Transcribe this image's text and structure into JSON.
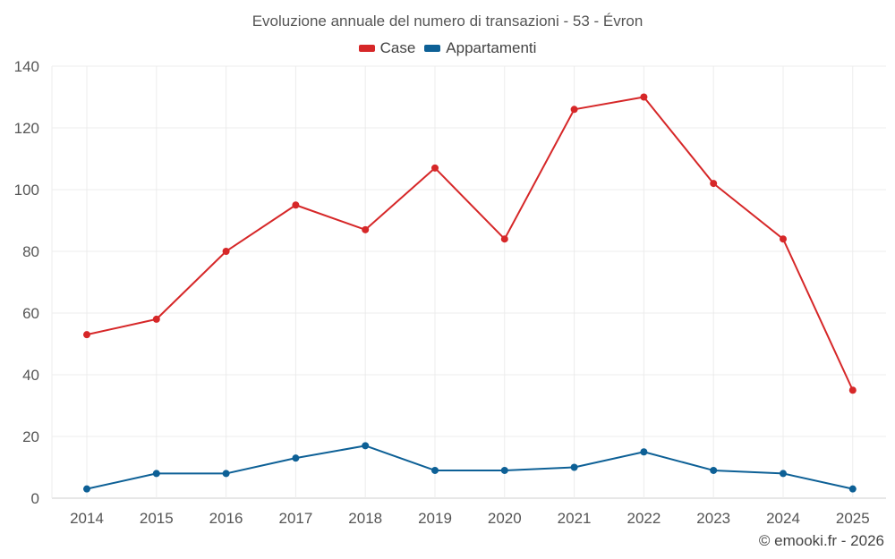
{
  "chart_data": {
    "type": "line",
    "title": "Evoluzione annuale del numero di transazioni - 53 - Évron",
    "categories": [
      "2014",
      "2015",
      "2016",
      "2017",
      "2018",
      "2019",
      "2020",
      "2021",
      "2022",
      "2023",
      "2024",
      "2025"
    ],
    "series": [
      {
        "name": "Case",
        "color": "#d62728",
        "values": [
          53,
          58,
          80,
          95,
          87,
          107,
          84,
          126,
          130,
          102,
          84,
          35
        ]
      },
      {
        "name": "Appartamenti",
        "color": "#0d6096",
        "values": [
          3,
          8,
          8,
          13,
          17,
          9,
          9,
          10,
          15,
          9,
          8,
          3
        ]
      }
    ],
    "ylim": [
      0,
      140
    ],
    "yticks": [
      0,
      20,
      40,
      60,
      80,
      100,
      120,
      140
    ],
    "grid": true,
    "legend": "top-center",
    "xlabel": "",
    "ylabel": ""
  },
  "credit": "© emooki.fr - 2026"
}
